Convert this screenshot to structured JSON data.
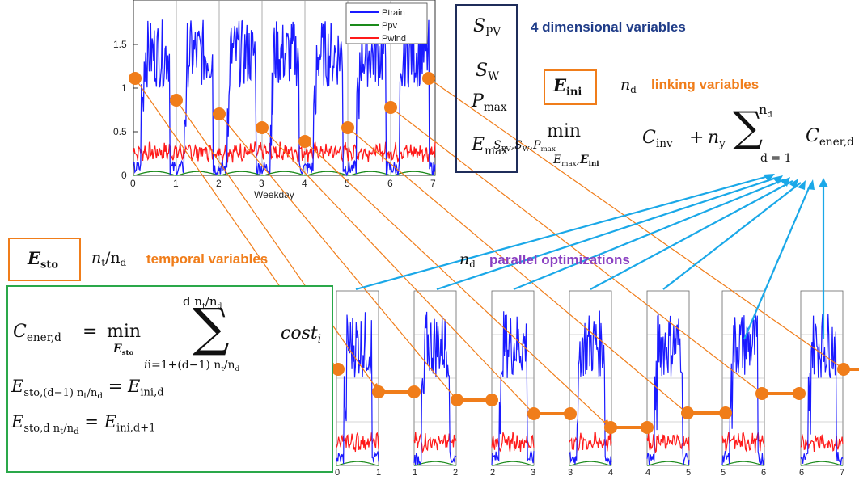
{
  "top_chart": {
    "y_ticks": [
      "0",
      "0.5",
      "1",
      "1.5"
    ],
    "x_ticks": [
      "0",
      "1",
      "2",
      "3",
      "4",
      "5",
      "6",
      "7"
    ],
    "xlabel": "Weekday",
    "legend": [
      "Ptrain",
      "Ppv",
      "Pwind"
    ],
    "colors": {
      "Ptrain": "#1a1aff",
      "Ppv": "#1a8a1a",
      "Pwind": "#ff1a1a"
    }
  },
  "dimensional_box": {
    "vars": [
      "S",
      "S",
      "P",
      "E"
    ],
    "subs": [
      "PV",
      "W",
      "max",
      "max"
    ],
    "label": "4 dimensional variables"
  },
  "linking": {
    "var": "E",
    "var_sub": "ini",
    "count": "n",
    "count_sub": "d",
    "label": "linking variables"
  },
  "objective": {
    "min": "min",
    "min_sub1": "S",
    "min_sub1_sub": "PV",
    "min_sub2": "S",
    "min_sub2_sub": "W",
    "min_sub3": "P",
    "min_sub3_sub": "max",
    "min_sub4": "E",
    "min_sub4_sub": "max",
    "min_sub5": "E",
    "min_sub5_sub": "ini",
    "cinv": "C",
    "cinv_sub": "inv",
    "plus": "+",
    "ny": "n",
    "ny_sub": "y",
    "sum_top": "n",
    "sum_top_sub": "d",
    "sum_bottom": "d = 1",
    "cener": "C",
    "cener_sub": "ener,d"
  },
  "temporal": {
    "var": "E",
    "var_sub": "sto",
    "count": "n",
    "count_sub": "t",
    "slash": "/n",
    "slash_sub": "d",
    "label": "temporal variables"
  },
  "parallel": {
    "count": "n",
    "count_sub": "d",
    "label": "parallel optimizations"
  },
  "green_box": {
    "lhs": "C",
    "lhs_sub": "ener,d",
    "eq": "=",
    "min": "min",
    "min_sub": "E",
    "min_sub_sub": "sto",
    "sum_top": "d n",
    "sum_top_sub1": "t",
    "sum_top_slash": "/n",
    "sum_top_sub2": "d",
    "sum_bottom": "i=1+(d−1) n",
    "sum_bottom_sub1": "t",
    "sum_bottom_slash": "/n",
    "sum_bottom_sub2": "d",
    "cost": "cost",
    "cost_sub": "i",
    "c1_lhs": "E",
    "c1_lhs_sub": "sto,(d−1) n",
    "c1_lhs_sub_t": "t",
    "c1_lhs_sub_slash": "/n",
    "c1_lhs_sub_d": "d",
    "c1_rhs": "E",
    "c1_rhs_sub": "ini,d",
    "c2_lhs": "E",
    "c2_lhs_sub": "sto,d n",
    "c2_lhs_sub_t": "t",
    "c2_lhs_sub_slash": "/n",
    "c2_lhs_sub_d": "d",
    "c2_rhs": "E",
    "c2_rhs_sub": "ini,d+1"
  },
  "daily_charts": {
    "ticks": [
      [
        "0",
        "1"
      ],
      [
        "1",
        "2"
      ],
      [
        "2",
        "3"
      ],
      [
        "3",
        "4"
      ],
      [
        "4",
        "5"
      ],
      [
        "5",
        "6"
      ],
      [
        "6",
        "7"
      ]
    ]
  }
}
